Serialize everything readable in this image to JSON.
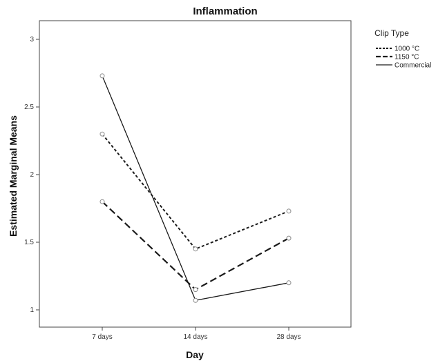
{
  "chart_data": {
    "type": "line",
    "title": "Inflammation",
    "xlabel": "Day",
    "ylabel": "Estimated Marginal Means",
    "categories": [
      "7 days",
      "14 days",
      "28 days"
    ],
    "ylim": [
      0.95,
      3.1
    ],
    "yticks": [
      1,
      1.5,
      2,
      2.5,
      3
    ],
    "ytick_labels": [
      "1",
      "1.5",
      "2",
      "2.5",
      "3"
    ],
    "grid": false,
    "legend": {
      "title": "Clip Type",
      "position": "right"
    },
    "series": [
      {
        "name": "1000 °C",
        "values": [
          2.3,
          1.45,
          1.73
        ],
        "style": "dotted"
      },
      {
        "name": "1150 °C",
        "values": [
          1.8,
          1.15,
          1.53
        ],
        "style": "dashed"
      },
      {
        "name": "Commercial",
        "values": [
          2.73,
          1.07,
          1.2
        ],
        "style": "solid"
      }
    ]
  }
}
